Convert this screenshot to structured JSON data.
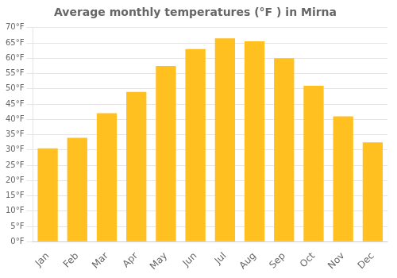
{
  "chart_data": {
    "type": "bar",
    "title": "Average monthly temperatures (°F ) in Mirna",
    "categories": [
      "Jan",
      "Feb",
      "Mar",
      "Apr",
      "May",
      "Jun",
      "Jul",
      "Aug",
      "Sep",
      "Oct",
      "Nov",
      "Dec"
    ],
    "values": [
      30.5,
      34.0,
      42.0,
      49.0,
      57.5,
      63.0,
      66.5,
      65.5,
      60.0,
      51.0,
      41.0,
      32.5
    ],
    "color": "#FFC020",
    "ylim": [
      0,
      70
    ],
    "yticks": [
      {
        "value": 0,
        "label": "0°F"
      },
      {
        "value": 5,
        "label": "5°F"
      },
      {
        "value": 10,
        "label": "10°F"
      },
      {
        "value": 15,
        "label": "15°F"
      },
      {
        "value": 20,
        "label": "20°F"
      },
      {
        "value": 25,
        "label": "25°F"
      },
      {
        "value": 30,
        "label": "30°F"
      },
      {
        "value": 35,
        "label": "35°F"
      },
      {
        "value": 40,
        "label": "40°F"
      },
      {
        "value": 45,
        "label": "45°F"
      },
      {
        "value": 50,
        "label": "50°F"
      },
      {
        "value": 55,
        "label": "55°F"
      },
      {
        "value": 60,
        "label": "60°F"
      },
      {
        "value": 65,
        "label": "65°F"
      },
      {
        "value": 70,
        "label": "70°F"
      }
    ],
    "grid": true
  }
}
